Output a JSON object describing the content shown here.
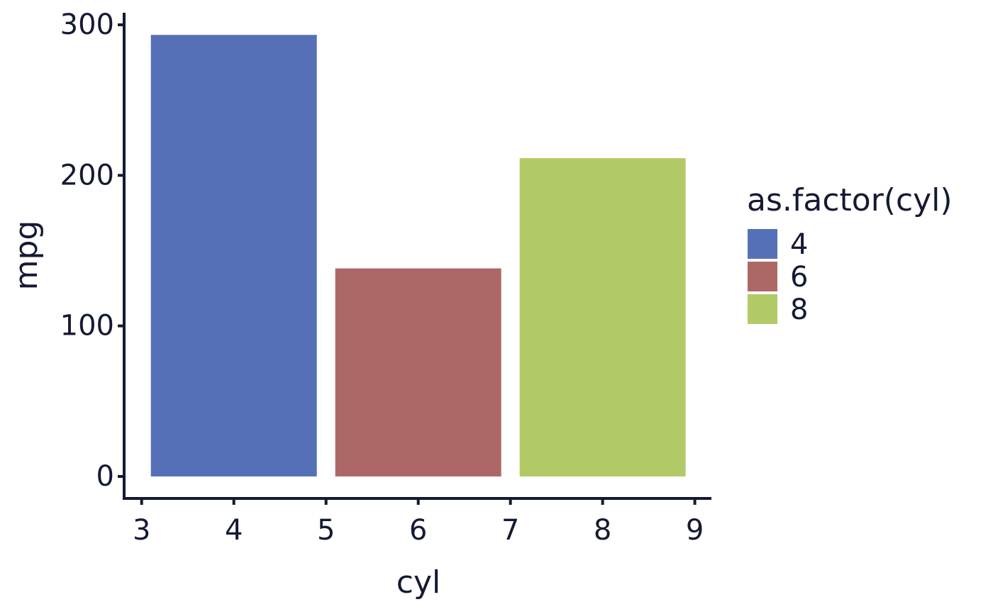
{
  "chart_data": {
    "type": "bar",
    "x_label": "cyl",
    "y_label": "mpg",
    "legend_title": "as.factor(cyl)",
    "series": [
      {
        "name": "4",
        "color": "#5670b7",
        "x": [
          4
        ],
        "values": [
          293.3
        ]
      },
      {
        "name": "6",
        "color": "#ad6866",
        "x": [
          6
        ],
        "values": [
          138.2
        ]
      },
      {
        "name": "8",
        "color": "#b2ca66",
        "x": [
          8
        ],
        "values": [
          211.4
        ]
      }
    ],
    "xlim": [
      2.81,
      9.18
    ],
    "xticks": [
      3,
      4,
      5,
      6,
      7,
      8,
      9
    ],
    "ylim": [
      -14.6,
      308
    ],
    "yticks": [
      0,
      100,
      200,
      300
    ],
    "legend": "right",
    "grid": false
  }
}
